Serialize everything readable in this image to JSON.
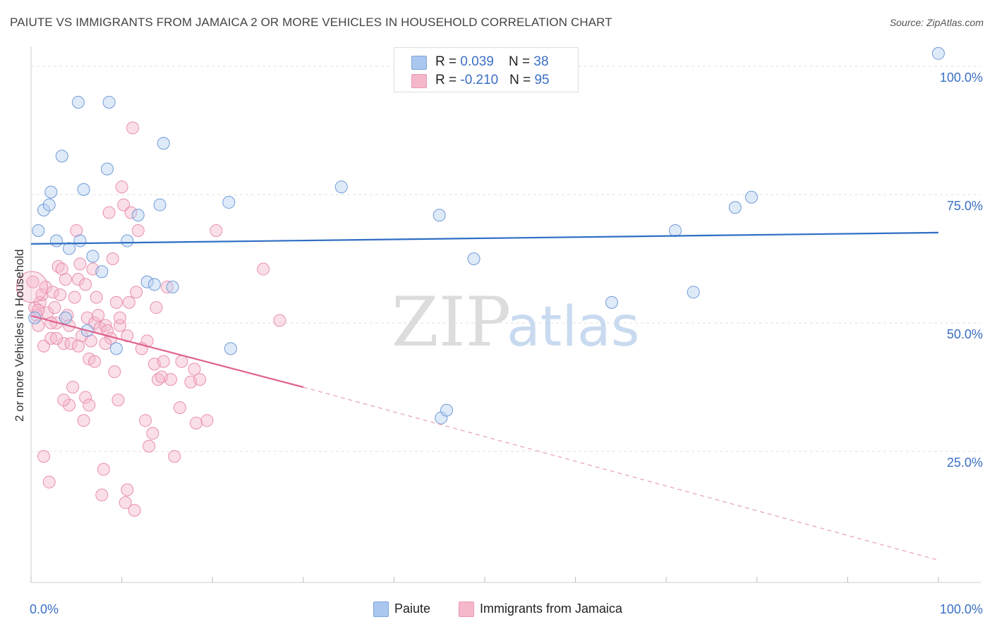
{
  "title": "PAIUTE VS IMMIGRANTS FROM JAMAICA 2 OR MORE VEHICLES IN HOUSEHOLD CORRELATION CHART",
  "source": "Source: ZipAtlas.com",
  "watermark": {
    "zip": "ZIP",
    "atlas": "atlas"
  },
  "legend": {
    "rows": [
      {
        "r_label": "R = ",
        "r_value": "0.039",
        "n_label": "N = ",
        "n_value": "38",
        "color": "#a9c7ef"
      },
      {
        "r_label": "R = ",
        "r_value": "-0.210",
        "n_label": "N = ",
        "n_value": "95",
        "color": "#f5b8cb"
      }
    ]
  },
  "bottom_legend": [
    {
      "label": "Paiute",
      "color": "#a9c7ef"
    },
    {
      "label": "Immigrants from Jamaica",
      "color": "#f5b8cb"
    }
  ],
  "chart_data": {
    "type": "scatter",
    "title": "PAIUTE VS IMMIGRANTS FROM JAMAICA 2 OR MORE VEHICLES IN HOUSEHOLD CORRELATION CHART",
    "xlabel": "",
    "ylabel": "2 or more Vehicles in Household",
    "xlim": [
      0,
      100
    ],
    "ylim": [
      0,
      100
    ],
    "x_tick_labels": [
      "0.0%",
      "100.0%"
    ],
    "y_tick_labels": [
      "25.0%",
      "50.0%",
      "75.0%",
      "100.0%"
    ],
    "y_ticks": [
      25,
      50,
      75,
      100
    ],
    "grid": true,
    "legend_position": "top-center",
    "colors": {
      "paiute": "#3a78c9",
      "jamaica": "#e0628c",
      "axis_text": "#3a6fc4"
    },
    "series": [
      {
        "name": "Paiute",
        "color": "#3a78c9",
        "points": [
          [
            0.4,
            51
          ],
          [
            0.8,
            68
          ],
          [
            1.4,
            72
          ],
          [
            2.0,
            73
          ],
          [
            2.2,
            75.5
          ],
          [
            2.8,
            66
          ],
          [
            3.4,
            82.5
          ],
          [
            4.2,
            64.5
          ],
          [
            5.2,
            93
          ],
          [
            5.4,
            66
          ],
          [
            5.8,
            76
          ],
          [
            6.8,
            63
          ],
          [
            7.8,
            60
          ],
          [
            8.6,
            93
          ],
          [
            8.4,
            80
          ],
          [
            9.4,
            45
          ],
          [
            10.6,
            66
          ],
          [
            11.8,
            71
          ],
          [
            12.8,
            58
          ],
          [
            13.6,
            57.5
          ],
          [
            14.2,
            73
          ],
          [
            14.6,
            85
          ],
          [
            15.6,
            57
          ],
          [
            21.8,
            73.5
          ],
          [
            22.0,
            45
          ],
          [
            34.2,
            76.5
          ],
          [
            45.0,
            71
          ],
          [
            45.2,
            31.5
          ],
          [
            45.8,
            33
          ],
          [
            48.8,
            62.5
          ],
          [
            64.0,
            54
          ],
          [
            71.0,
            68
          ],
          [
            73.0,
            56
          ],
          [
            77.6,
            72.5
          ],
          [
            79.4,
            74.5
          ],
          [
            100.0,
            102.5
          ],
          [
            6.2,
            48.5
          ],
          [
            3.8,
            51
          ]
        ],
        "trend": {
          "x": [
            0,
            100
          ],
          "y": [
            65.4,
            67.6
          ],
          "style": "solid"
        }
      },
      {
        "name": "Immigrants from Jamaica",
        "color": "#e0628c",
        "points": [
          [
            0.2,
            58
          ],
          [
            0.4,
            53
          ],
          [
            0.6,
            51.5
          ],
          [
            0.8,
            49.5
          ],
          [
            1.0,
            54
          ],
          [
            1.2,
            55.5
          ],
          [
            1.4,
            45.5
          ],
          [
            1.6,
            57
          ],
          [
            1.8,
            52
          ],
          [
            2.0,
            19
          ],
          [
            2.2,
            47
          ],
          [
            2.4,
            56
          ],
          [
            2.6,
            53
          ],
          [
            2.8,
            50
          ],
          [
            3.0,
            61
          ],
          [
            3.2,
            55.5
          ],
          [
            3.4,
            60.5
          ],
          [
            3.6,
            46
          ],
          [
            3.8,
            58.5
          ],
          [
            4.0,
            51.5
          ],
          [
            4.2,
            49.5
          ],
          [
            4.4,
            46
          ],
          [
            4.6,
            37.5
          ],
          [
            4.8,
            55
          ],
          [
            5.0,
            68
          ],
          [
            5.2,
            58.5
          ],
          [
            5.4,
            61.5
          ],
          [
            5.6,
            47.5
          ],
          [
            5.8,
            31
          ],
          [
            6.0,
            35.5
          ],
          [
            6.2,
            51
          ],
          [
            6.4,
            43
          ],
          [
            6.6,
            46.5
          ],
          [
            6.8,
            60.5
          ],
          [
            7.0,
            50
          ],
          [
            7.2,
            55
          ],
          [
            7.4,
            51.5
          ],
          [
            7.6,
            49
          ],
          [
            7.8,
            16.5
          ],
          [
            8.0,
            21.5
          ],
          [
            8.2,
            49.5
          ],
          [
            8.4,
            48.5
          ],
          [
            8.6,
            71.5
          ],
          [
            8.8,
            47
          ],
          [
            9.0,
            62.5
          ],
          [
            9.2,
            40.5
          ],
          [
            9.4,
            54
          ],
          [
            9.6,
            35
          ],
          [
            9.8,
            49.5
          ],
          [
            10.0,
            76.5
          ],
          [
            10.2,
            73
          ],
          [
            10.4,
            15
          ],
          [
            10.6,
            17.5
          ],
          [
            10.8,
            54
          ],
          [
            11.0,
            71.5
          ],
          [
            11.2,
            88
          ],
          [
            11.4,
            13.5
          ],
          [
            11.6,
            56
          ],
          [
            11.8,
            68
          ],
          [
            12.6,
            31
          ],
          [
            12.8,
            46.5
          ],
          [
            13.0,
            26
          ],
          [
            13.4,
            28.5
          ],
          [
            13.6,
            42
          ],
          [
            13.8,
            53
          ],
          [
            14.0,
            39
          ],
          [
            14.4,
            39.5
          ],
          [
            14.6,
            42.5
          ],
          [
            15.0,
            57
          ],
          [
            15.4,
            39
          ],
          [
            15.8,
            24
          ],
          [
            16.4,
            33.5
          ],
          [
            16.6,
            42.5
          ],
          [
            17.6,
            38.5
          ],
          [
            18.0,
            41
          ],
          [
            18.2,
            30.5
          ],
          [
            18.6,
            39
          ],
          [
            19.4,
            31
          ],
          [
            20.4,
            68
          ],
          [
            25.6,
            60.5
          ],
          [
            27.4,
            50.5
          ],
          [
            4.2,
            34
          ],
          [
            2.8,
            47
          ],
          [
            6.4,
            34
          ],
          [
            3.6,
            35
          ],
          [
            7.0,
            42.5
          ],
          [
            1.4,
            24
          ],
          [
            0.8,
            52.5
          ],
          [
            5.2,
            45.5
          ],
          [
            9.8,
            51
          ],
          [
            12.2,
            45
          ],
          [
            10.6,
            47.5
          ],
          [
            8.2,
            46
          ],
          [
            6.0,
            57.5
          ],
          [
            2.2,
            50
          ]
        ],
        "trend": {
          "x": [
            0,
            30
          ],
          "y": [
            51.4,
            37.5
          ],
          "style": "solid",
          "extension": {
            "x": [
              30,
              100
            ],
            "y": [
              37.5,
              3.8
            ],
            "style": "dashed"
          }
        }
      }
    ]
  }
}
